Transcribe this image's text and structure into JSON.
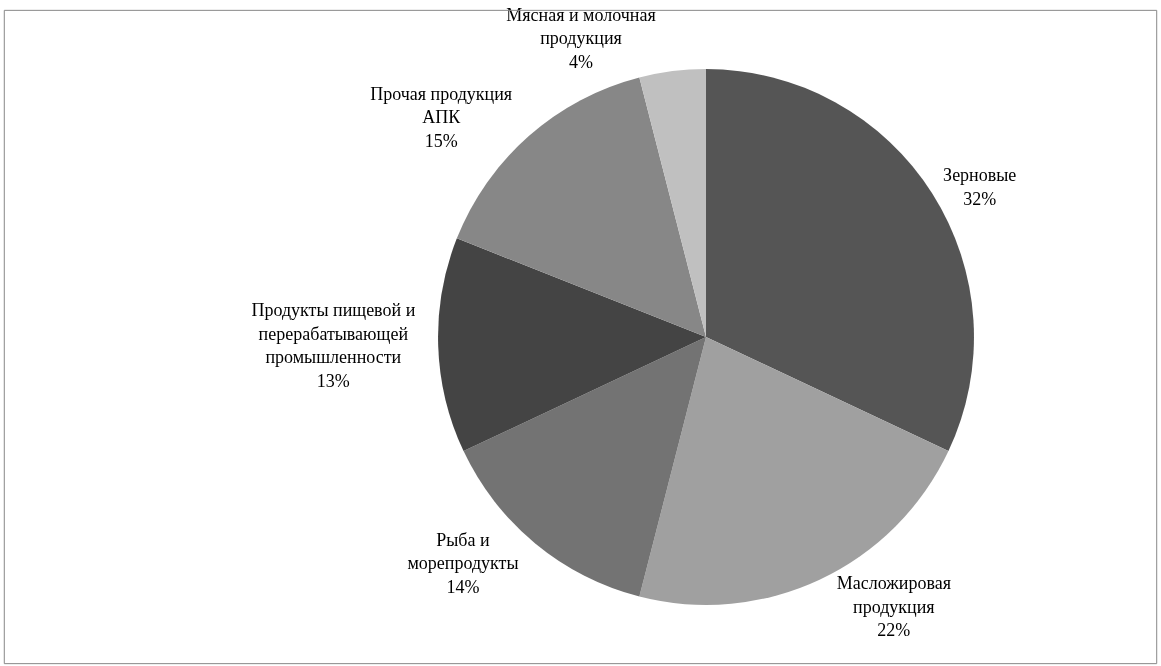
{
  "chart_data": {
    "type": "pie",
    "categories": [
      "Зерновые",
      "Масложировая продукция",
      "Рыба и морепродукты",
      "Продукты пищевой и перерабатывающей промышленности",
      "Прочая продукция АПК",
      "Мясная и молочная продукция"
    ],
    "values": [
      32,
      22,
      14,
      13,
      15,
      4
    ],
    "value_labels": [
      "32%",
      "22%",
      "14%",
      "13%",
      "15%",
      "4%"
    ],
    "colors": [
      "#555555",
      "#a0a0a0",
      "#737373",
      "#444444",
      "#878787",
      "#c0c0c0"
    ],
    "legend": false
  }
}
